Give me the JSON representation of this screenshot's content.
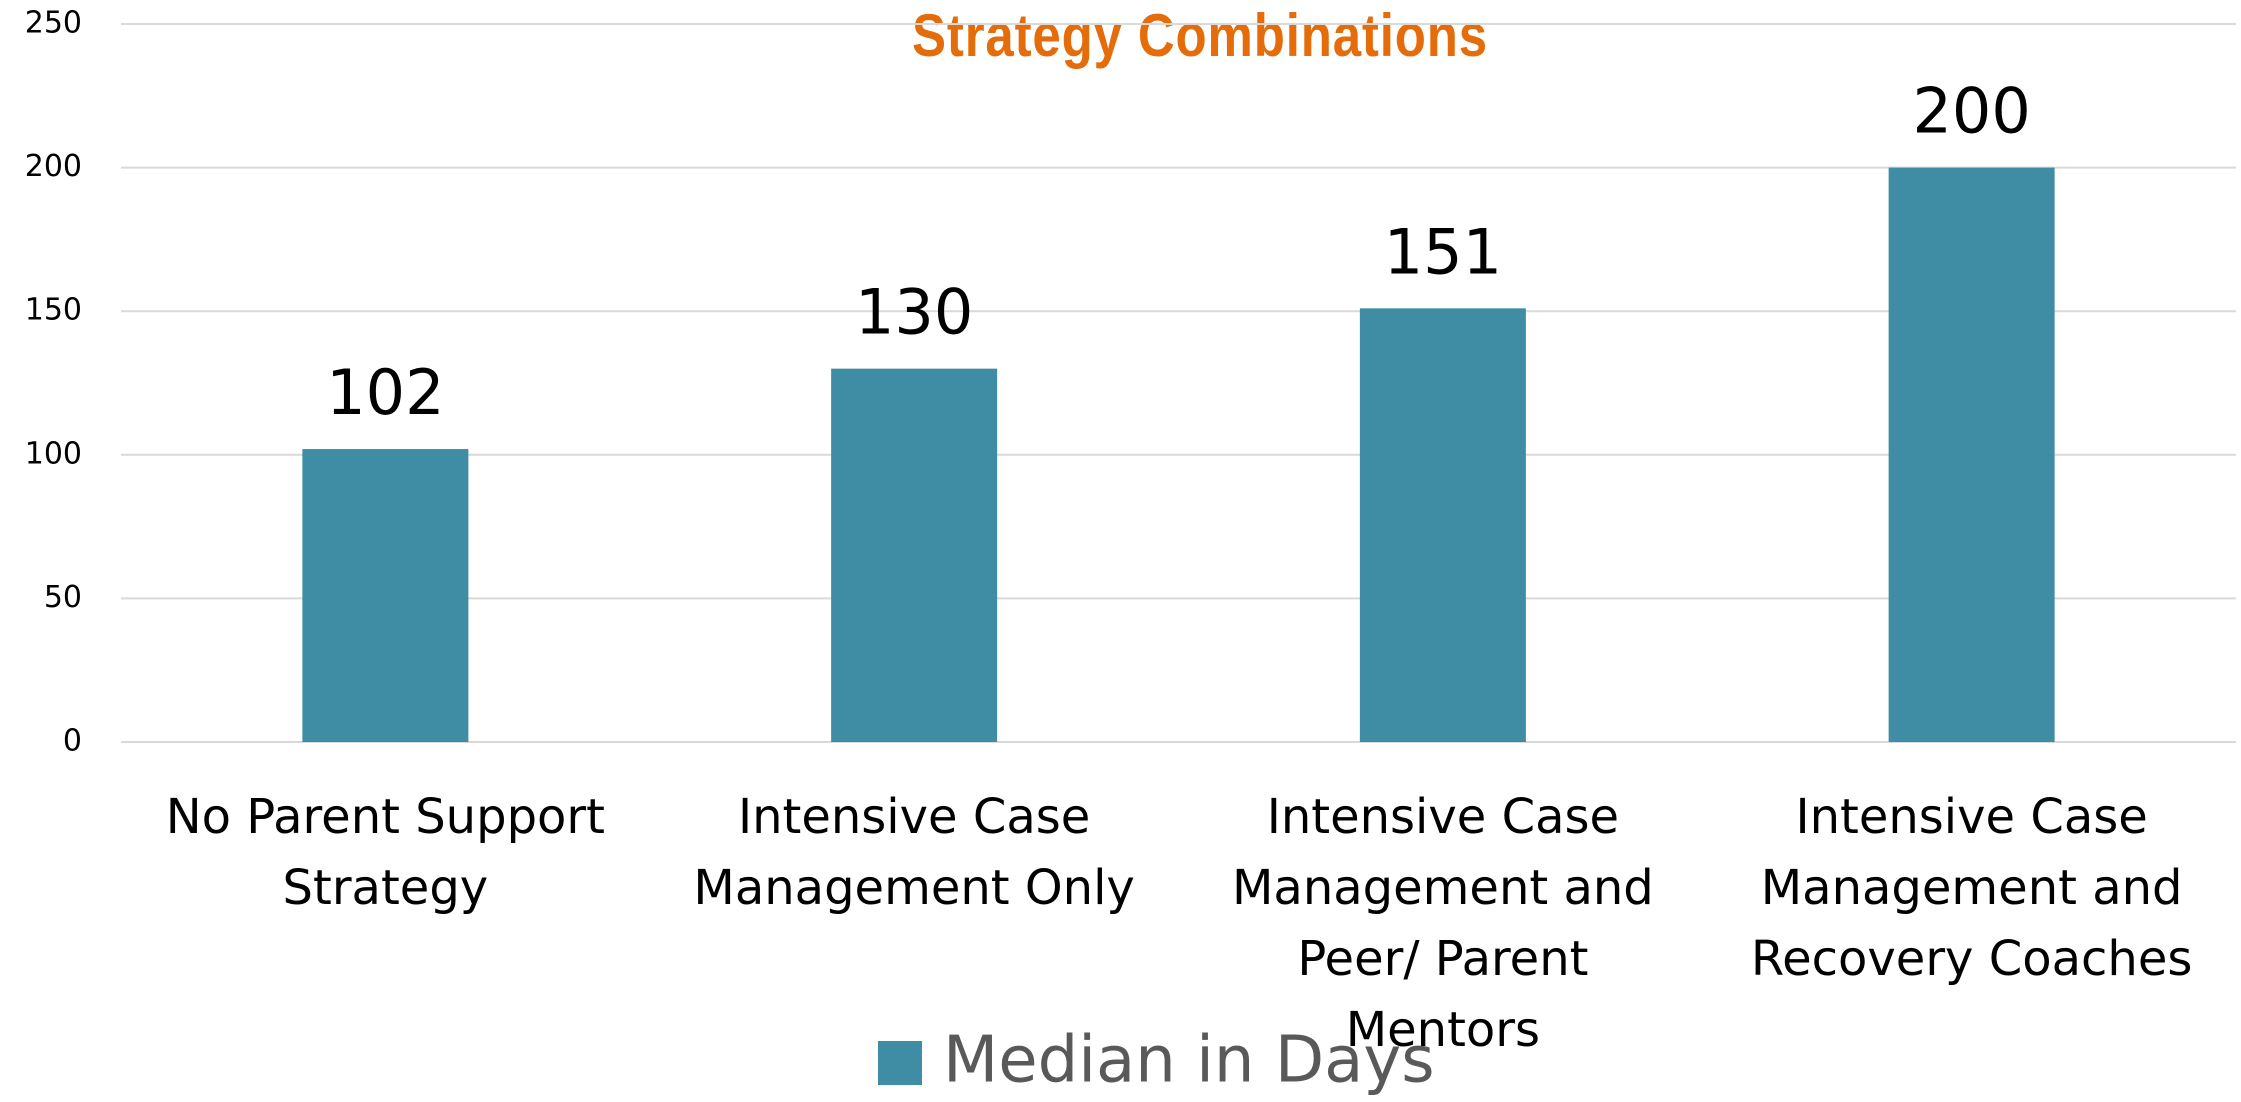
{
  "chart_data": {
    "type": "bar",
    "title": "Strategy Combinations",
    "categories": [
      "No Parent Support Strategy",
      "Intensive Case Management Only",
      "Intensive Case Management and Peer/ Parent Mentors",
      "Intensive Case Management and Recovery Coaches"
    ],
    "series": [
      {
        "name": "Median in Days",
        "color": "#3e8da4",
        "values": [
          102,
          130,
          151,
          200
        ]
      }
    ],
    "ylim": [
      0,
      250
    ],
    "yticks": [
      0,
      50,
      100,
      150,
      200,
      250
    ],
    "grid": true,
    "legend": "bottom"
  }
}
